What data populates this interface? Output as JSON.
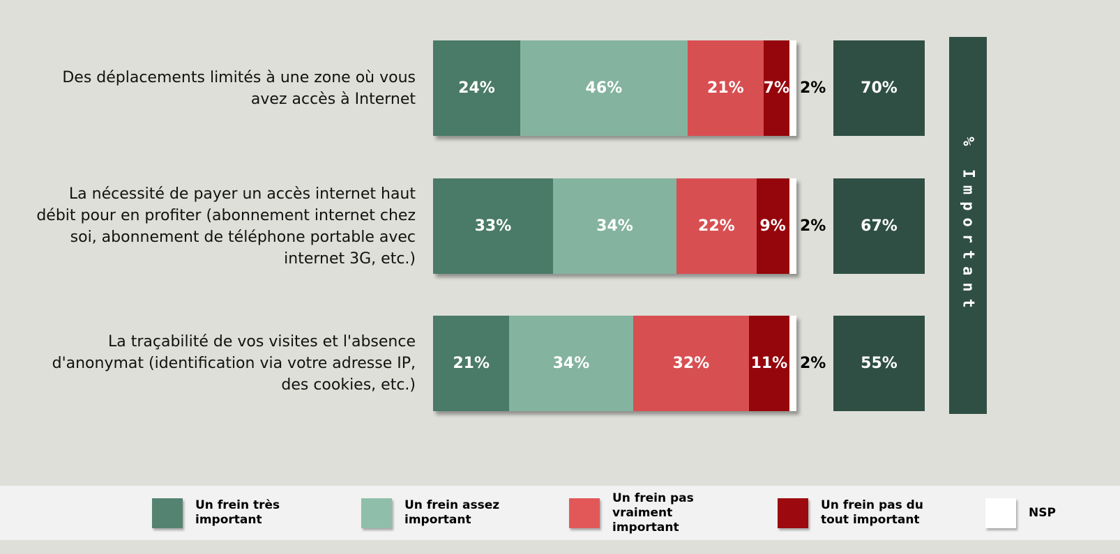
{
  "chart_data": {
    "type": "bar",
    "stacked": true,
    "orientation": "horizontal",
    "categories": [
      "Des déplacements limités à une zone où vous avez accès à Internet",
      "La nécessité de payer un accès internet haut débit pour en profiter (abonnement internet chez soi, abonnement de téléphone portable avec internet 3G, etc.)",
      "La traçabilité de vos visites et l'absence d'anonymat (identification via votre adresse IP, des cookies, etc.)"
    ],
    "series": [
      {
        "name": "Un frein très important",
        "color": "#4a7a68",
        "legend_color": "#548471",
        "values": [
          24,
          33,
          21
        ]
      },
      {
        "name": "Un frein assez important",
        "color": "#84b3a0",
        "legend_color": "#8fbfab",
        "values": [
          46,
          34,
          34
        ]
      },
      {
        "name": "Un frein pas vraiment important",
        "color": "#d84f52",
        "legend_color": "#e25858",
        "values": [
          21,
          22,
          32
        ]
      },
      {
        "name": "Un frein pas du tout important",
        "color": "#95060c",
        "legend_color": "#9c0a10",
        "values": [
          7,
          9,
          11
        ]
      },
      {
        "name": "NSP",
        "color": "#ffffff",
        "legend_color": "#ffffff",
        "values": [
          2,
          2,
          2
        ]
      }
    ],
    "totals": {
      "label": "% Important",
      "values": [
        70,
        67,
        55
      ],
      "color": "#2f4f44"
    },
    "value_suffix": "%",
    "legend_position": "bottom",
    "grid": false
  },
  "colors": {
    "background": "#dfdfd9",
    "legend_background": "#f2f2f2"
  }
}
